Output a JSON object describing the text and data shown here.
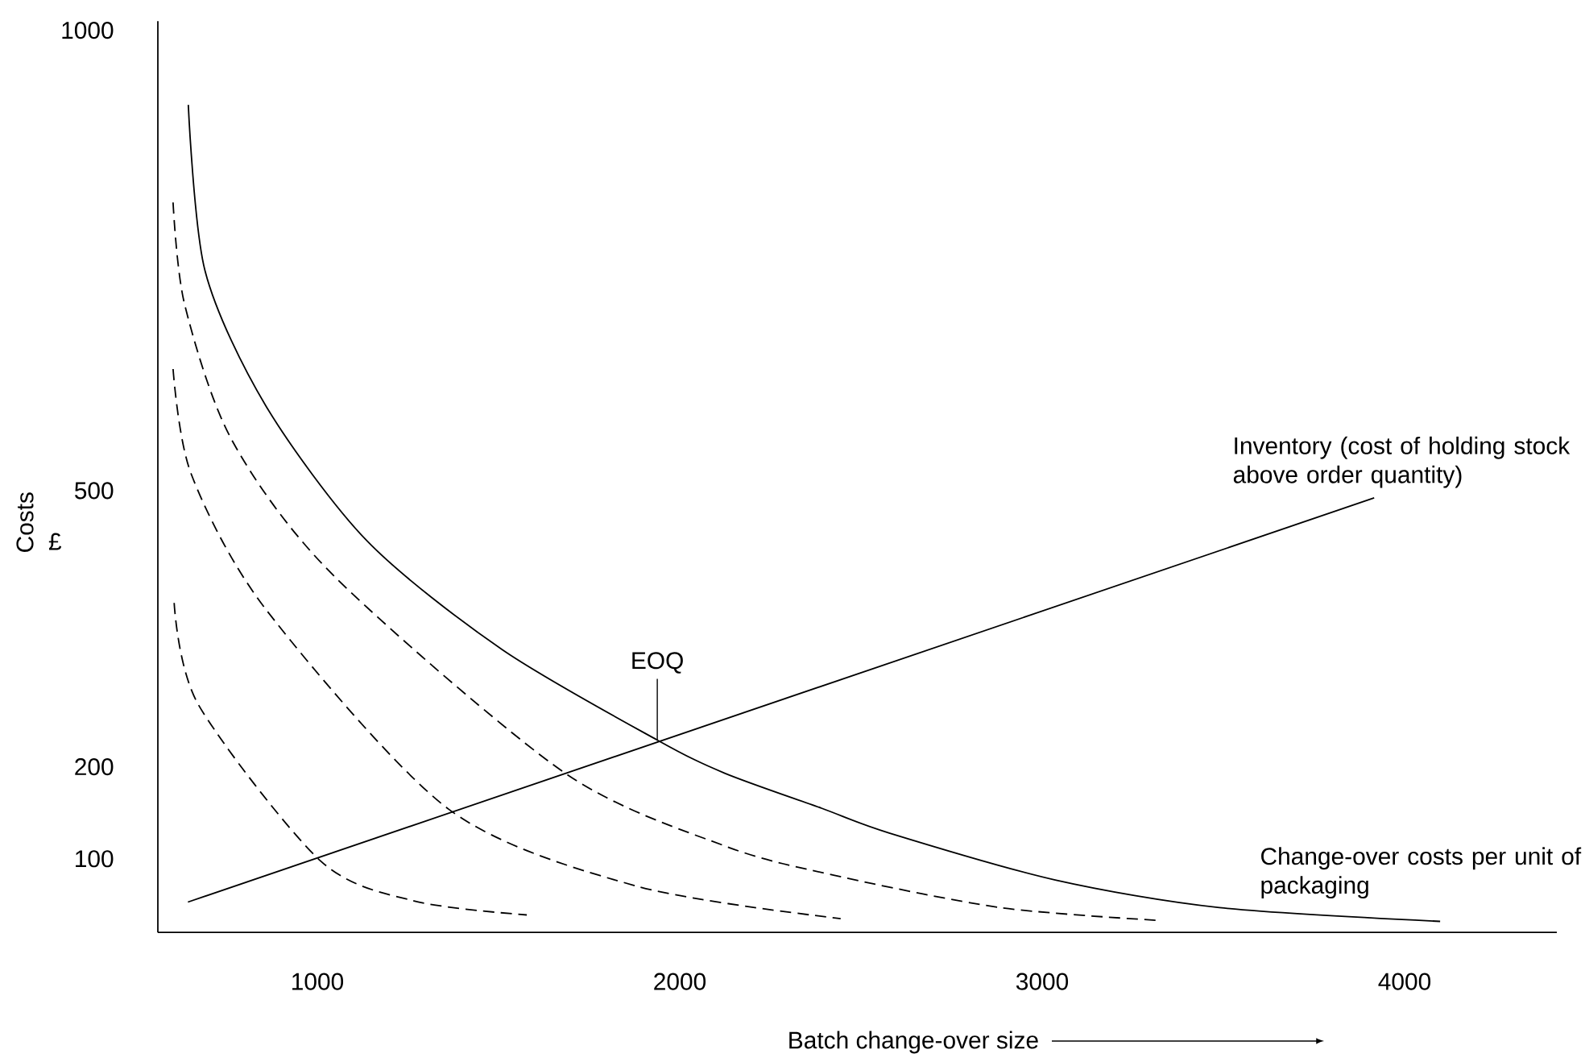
{
  "chart_data": {
    "type": "line",
    "xlabel": "Batch change-over size",
    "ylabel": "Costs",
    "xlim": [
      560,
      4420
    ],
    "ylim": [
      20,
      1010
    ],
    "xticks": [
      1000,
      2000,
      3000,
      4000
    ],
    "yticks": [
      100,
      200,
      500,
      1000
    ],
    "annotations": [
      "£",
      {
        "text": "EOQ",
        "x": 1938,
        "y": 229
      }
    ],
    "series": [
      {
        "name": "Inventory (cost of holding stock above order quantity)",
        "color": "#000000",
        "line_style": "solid",
        "x": [
          643,
          3916
        ],
        "values": [
          53,
          492
        ]
      },
      {
        "name": "Change-over costs per unit of packaging",
        "color": "#000000",
        "line_style": "solid",
        "x": [
          644,
          690,
          858,
          1138,
          1511,
          1938,
          2124,
          2391,
          2578,
          3036,
          3489,
          4098
        ],
        "values": [
          919,
          739,
          592,
          445,
          327,
          229,
          193,
          155,
          128,
          77,
          47,
          32
        ]
      },
      {
        "color": "#000000",
        "line_style": "dashed",
        "x": [
          602,
          634,
          764,
          1044,
          1680,
          2124,
          2427,
          2884,
          3324
        ],
        "values": [
          813,
          702,
          555,
          408,
          194,
          114,
          82,
          47,
          33
        ]
      },
      {
        "color": "#000000",
        "line_style": "dashed",
        "x": [
          602,
          652,
          858,
          1362,
          1884,
          2444
        ],
        "values": [
          632,
          518,
          371,
          154,
          70,
          35
        ]
      },
      {
        "color": "#000000",
        "line_style": "dashed",
        "x": [
          605,
          671,
          1008,
          1269,
          1578
        ],
        "values": [
          378,
          268,
          98,
          54,
          39
        ]
      }
    ]
  }
}
